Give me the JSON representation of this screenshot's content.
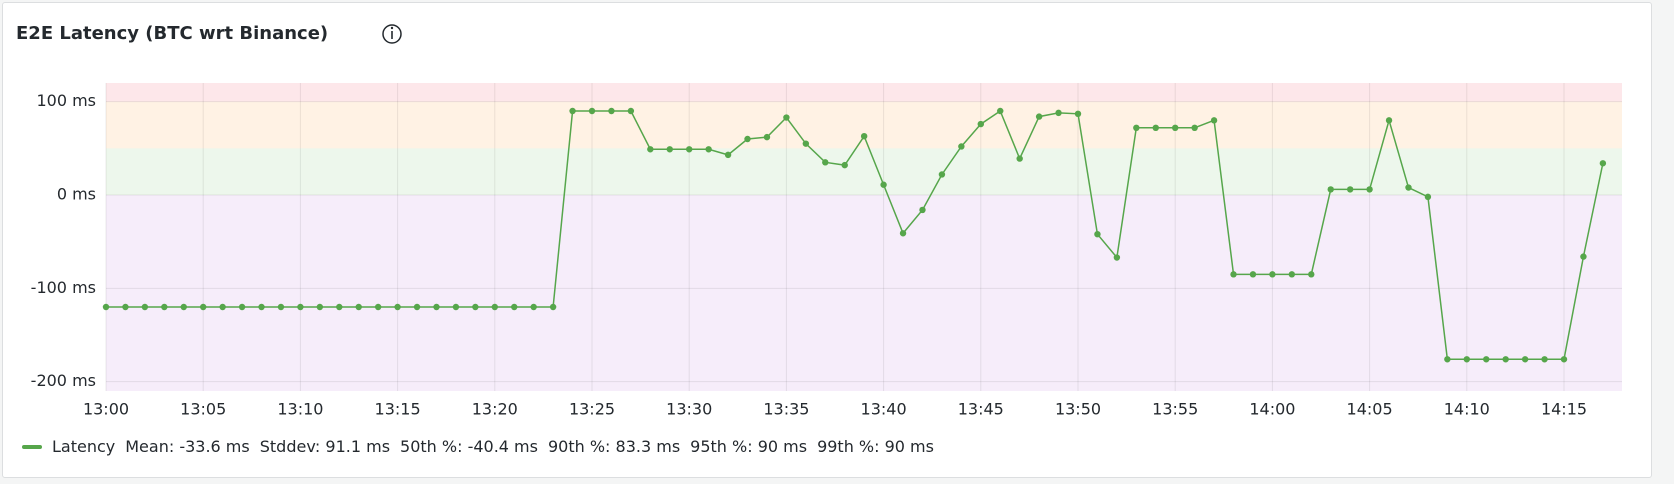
{
  "chart_data": {
    "type": "line",
    "title": "E2E Latency (BTC wrt Binance)",
    "categories": [
      "13:00",
      null,
      null,
      null,
      null,
      "13:05",
      null,
      null,
      null,
      null,
      "13:10",
      null,
      null,
      null,
      null,
      "13:15",
      null,
      null,
      null,
      null,
      "13:20",
      null,
      null,
      null,
      null,
      "13:25",
      null,
      null,
      null,
      null,
      "13:30",
      null,
      null,
      null,
      null,
      "13:35",
      null,
      null,
      null,
      null,
      "13:40",
      null,
      null,
      null,
      null,
      "13:45",
      null,
      null,
      null,
      null,
      "13:50",
      null,
      null,
      null,
      null,
      "13:55",
      null,
      null,
      null,
      null,
      "14:00",
      null,
      null,
      null,
      null,
      "14:05",
      null,
      null,
      null,
      null,
      "14:10",
      null,
      null,
      null,
      null,
      "14:15",
      null,
      null
    ],
    "series": [
      {
        "name": "Latency",
        "color": "#56a64b",
        "values": [
          -120,
          -120,
          -120,
          -120,
          -120,
          -120,
          -120,
          -120,
          -120,
          -120,
          -120,
          -120,
          -120,
          -120,
          -120,
          -120,
          -120,
          -120,
          -120,
          -120,
          -120,
          -120,
          -120,
          -120,
          90,
          90,
          90,
          90,
          49,
          49,
          49,
          49,
          43,
          60,
          62,
          83,
          55,
          35,
          32,
          63,
          11,
          -41,
          -16,
          22,
          52,
          76,
          90,
          39,
          84,
          88,
          87,
          -42,
          -67,
          72,
          72,
          72,
          72,
          80,
          -85,
          -85,
          -85,
          -85,
          -85,
          6,
          6,
          6,
          80,
          8,
          -2,
          -176,
          -176,
          -176,
          -176,
          -176,
          -176,
          -176,
          -66,
          34
        ]
      }
    ],
    "legend_stats": [
      "Mean: -33.6 ms",
      "Stddev: 91.1 ms",
      "50th %: -40.4 ms",
      "90th %: 83.3 ms",
      "95th %: 90 ms",
      "99th %: 90 ms"
    ],
    "ylim": [
      -210,
      120
    ],
    "yticks": [
      {
        "value": -200,
        "label": "-200 ms"
      },
      {
        "value": -100,
        "label": "-100 ms"
      },
      {
        "value": 0,
        "label": "0 ms"
      },
      {
        "value": 100,
        "label": "100 ms"
      }
    ],
    "threshold_bands": [
      {
        "from": -210,
        "to": 0,
        "color": "rgba(163,82,204,0.10)"
      },
      {
        "from": 0,
        "to": 50,
        "color": "rgba(115,191,105,0.13)"
      },
      {
        "from": 50,
        "to": 100,
        "color": "rgba(255,152,48,0.13)"
      },
      {
        "from": 100,
        "to": 120,
        "color": "rgba(242,73,92,0.13)"
      }
    ],
    "grid": true
  }
}
